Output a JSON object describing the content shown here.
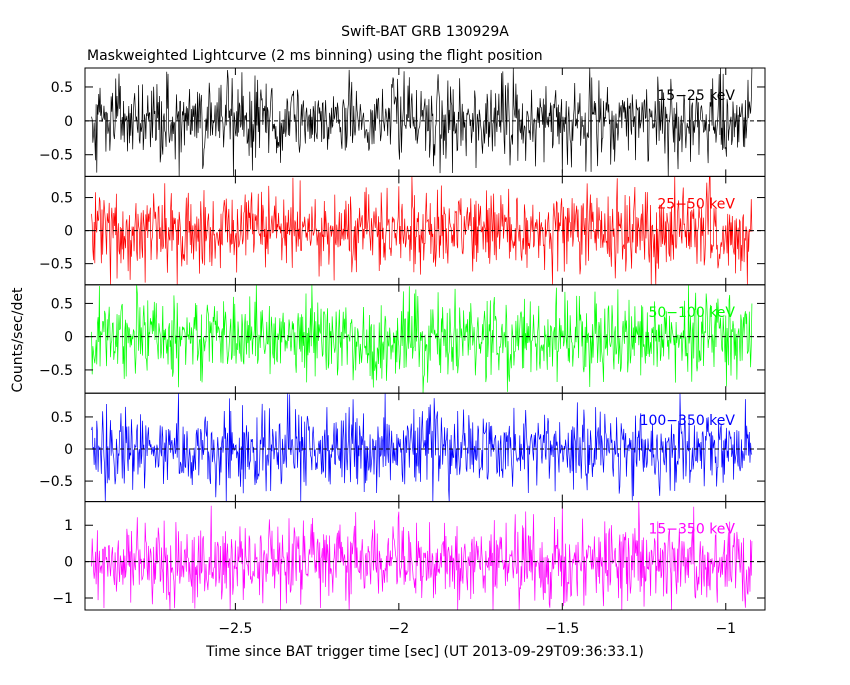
{
  "chart_data": {
    "type": "line",
    "title": "Swift-BAT GRB 130929A",
    "subtitle": "Maskweighted Lightcurve (2 ms binning) using the flight position",
    "xlabel": "Time since BAT trigger time [sec] (UT 2013-09-29T09:36:33.1)",
    "ylabel": "Counts/sec/det",
    "xlim": [
      -2.96,
      -0.88
    ],
    "x_ticks": [
      -2.5,
      -2,
      -1.5,
      -1
    ],
    "x_tick_labels": [
      "−2.5",
      "−2",
      "−1.5",
      "−1"
    ],
    "bin_width_sec": 0.002,
    "series_x_range": [
      -2.94,
      -0.92
    ],
    "grid": false,
    "panels": [
      {
        "name": "15−25 keV",
        "color": "#000000",
        "ylim": [
          -0.82,
          0.78
        ],
        "y_ticks": [
          -0.5,
          0,
          0.5
        ],
        "y_tick_labels": [
          "−0.5",
          "0",
          "0.5"
        ],
        "noise_amplitude": 0.3
      },
      {
        "name": "25−50 keV",
        "color": "#ff0000",
        "ylim": [
          -0.82,
          0.82
        ],
        "y_ticks": [
          -0.5,
          0,
          0.5
        ],
        "y_tick_labels": [
          "−0.5",
          "0",
          "0.5"
        ],
        "noise_amplitude": 0.3
      },
      {
        "name": "50−100 keV",
        "color": "#00ff00",
        "ylim": [
          -0.85,
          0.78
        ],
        "y_ticks": [
          -0.5,
          0,
          0.5
        ],
        "y_tick_labels": [
          "−0.5",
          "0",
          "0.5"
        ],
        "noise_amplitude": 0.3
      },
      {
        "name": "100−350 keV",
        "color": "#0000ff",
        "ylim": [
          -0.82,
          0.87
        ],
        "y_ticks": [
          -0.5,
          0,
          0.5
        ],
        "y_tick_labels": [
          "−0.5",
          "0",
          "0.5"
        ],
        "noise_amplitude": 0.3
      },
      {
        "name": "15−350 keV",
        "color": "#ff00ff",
        "ylim": [
          -1.33,
          1.65
        ],
        "y_ticks": [
          -1,
          0,
          1
        ],
        "y_tick_labels": [
          "−1",
          "0",
          "1"
        ],
        "noise_amplitude": 0.55
      }
    ]
  }
}
